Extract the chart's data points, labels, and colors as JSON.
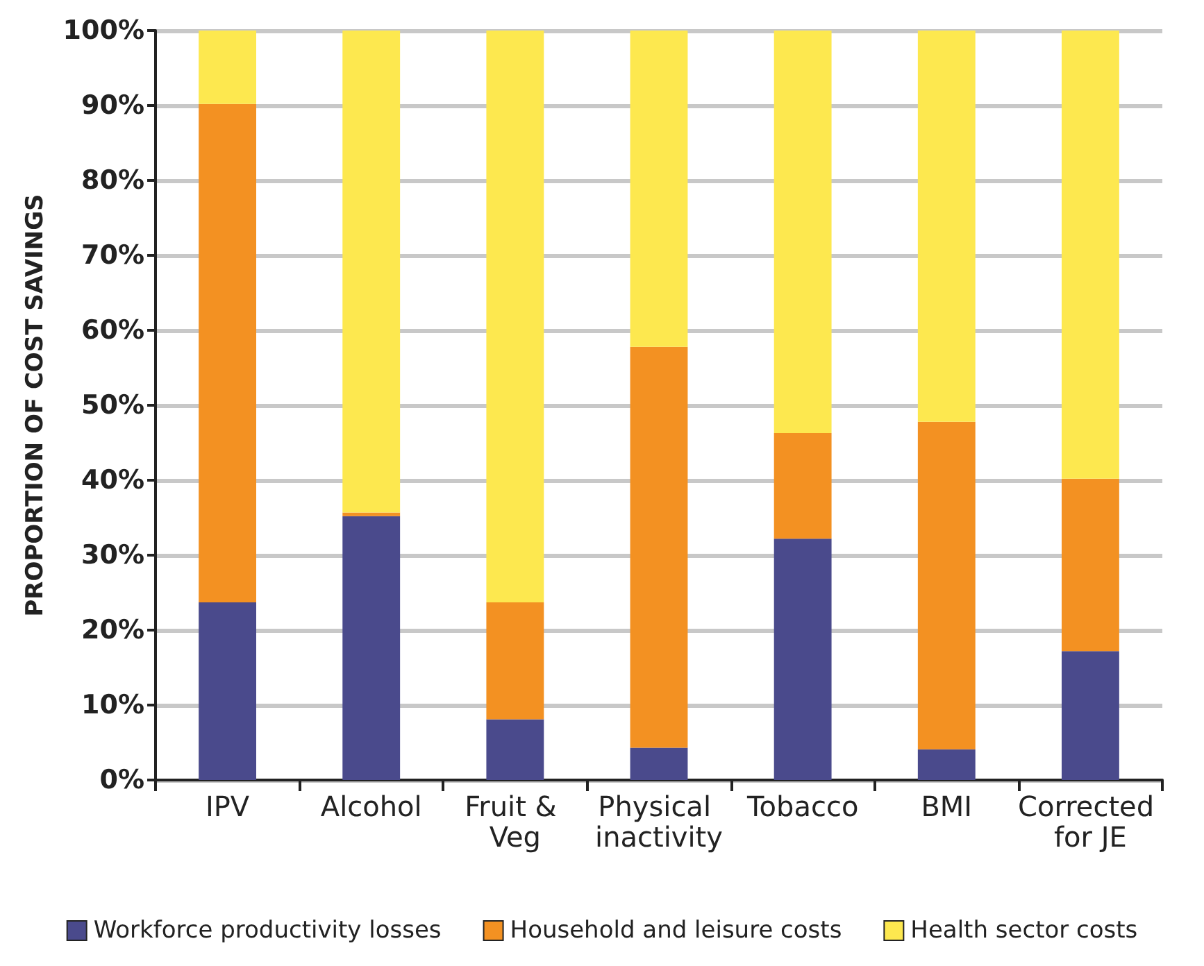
{
  "chart_data": {
    "type": "bar",
    "stacked": true,
    "ylabel": "PROPORTION OF COST SAVINGS",
    "categories": [
      "IPV",
      "Alcohol",
      "Fruit & Veg",
      "Physical inactivity",
      "Tobacco",
      "BMI",
      "Corrected for JE"
    ],
    "series": [
      {
        "name": "Workforce productivity losses",
        "color": "#4a4a8c",
        "values": [
          23.7,
          35.2,
          8.1,
          4.3,
          32.2,
          4.1,
          17.2
        ]
      },
      {
        "name": "Household and leisure costs",
        "color": "#f39122",
        "values": [
          66.5,
          0.5,
          15.6,
          53.5,
          14.1,
          43.7,
          23
        ]
      },
      {
        "name": "Health sector costs",
        "color": "#fde84f",
        "values": [
          9.8,
          64.3,
          76.3,
          42.2,
          53.7,
          52.2,
          59.8
        ]
      }
    ],
    "ylim": [
      0,
      100
    ],
    "yticks": [
      {
        "value": 0,
        "label": "0%"
      },
      {
        "value": 10,
        "label": "10%"
      },
      {
        "value": 20,
        "label": "20%"
      },
      {
        "value": 30,
        "label": "30%"
      },
      {
        "value": 40,
        "label": "40%"
      },
      {
        "value": 50,
        "label": "50%"
      },
      {
        "value": 60,
        "label": "60%"
      },
      {
        "value": 70,
        "label": "70%"
      },
      {
        "value": 80,
        "label": "80%"
      },
      {
        "value": 90,
        "label": "90%"
      },
      {
        "value": 100,
        "label": "100%"
      }
    ],
    "grid": "y",
    "legend": "bottom"
  }
}
